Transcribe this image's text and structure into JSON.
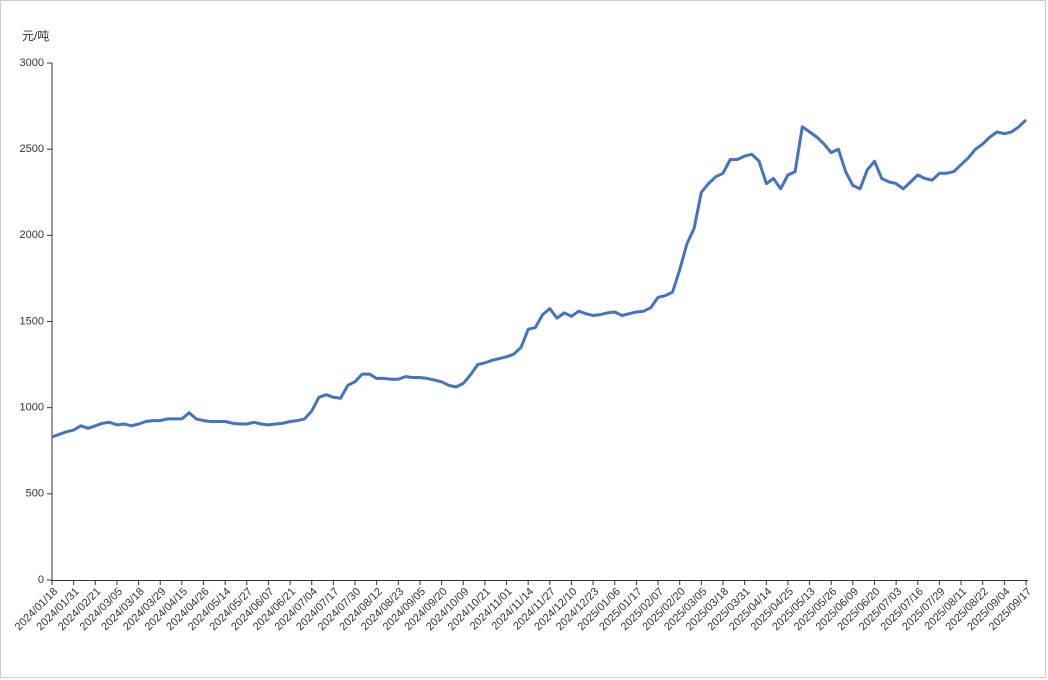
{
  "chart_data": {
    "type": "line",
    "y_axis_label": "元/吨",
    "categories": [
      "2024/01/18",
      null,
      null,
      "2024/01/31",
      null,
      null,
      "2024/02/21",
      null,
      null,
      "2024/03/05",
      null,
      null,
      "2024/03/18",
      null,
      null,
      "2024/03/29",
      null,
      null,
      "2024/04/15",
      null,
      null,
      "2024/04/26",
      null,
      null,
      "2024/05/14",
      null,
      null,
      "2024/05/27",
      null,
      null,
      "2024/06/07",
      null,
      null,
      "2024/06/21",
      null,
      null,
      "2024/07/04",
      null,
      null,
      "2024/07/17",
      null,
      null,
      "2024/07/30",
      null,
      null,
      "2024/08/12",
      null,
      null,
      "2024/08/23",
      null,
      null,
      "2024/09/05",
      null,
      null,
      "2024/09/20",
      null,
      null,
      "2024/10/09",
      null,
      null,
      "2024/10/21",
      null,
      null,
      "2024/11/01",
      null,
      null,
      "2024/11/14",
      null,
      null,
      "2024/11/27",
      null,
      null,
      "2024/12/10",
      null,
      null,
      "2024/12/23",
      null,
      null,
      "2025/01/06",
      null,
      null,
      "2025/01/17",
      null,
      null,
      "2025/02/07",
      null,
      null,
      "2025/02/20",
      null,
      null,
      "2025/03/05",
      null,
      null,
      "2025/03/18",
      null,
      null,
      "2025/03/31",
      null,
      null,
      "2025/04/14",
      null,
      null,
      "2025/04/25",
      null,
      null,
      "2025/05/13",
      null,
      null,
      "2025/05/26",
      null,
      null,
      "2025/06/09",
      null,
      null,
      "2025/06/20",
      null,
      null,
      "2025/07/03",
      null,
      null,
      "2025/07/16",
      null,
      null,
      "2025/07/29",
      null,
      null,
      "2025/08/11",
      null,
      null,
      "2025/08/22",
      null,
      null,
      "2025/09/04",
      null,
      null,
      "2025/09/17"
    ],
    "series": [
      {
        "color": "#4472c4",
        "values": [
          830,
          845,
          860,
          870,
          895,
          880,
          895,
          910,
          915,
          900,
          905,
          895,
          905,
          920,
          925,
          925,
          935,
          935,
          935,
          970,
          935,
          925,
          920,
          920,
          920,
          910,
          905,
          905,
          915,
          905,
          900,
          905,
          910,
          920,
          925,
          935,
          980,
          1060,
          1075,
          1060,
          1055,
          1130,
          1150,
          1195,
          1195,
          1170,
          1170,
          1165,
          1165,
          1180,
          1175,
          1175,
          1170,
          1160,
          1150,
          1130,
          1120,
          1140,
          1190,
          1250,
          1260,
          1275,
          1285,
          1295,
          1310,
          1350,
          1455,
          1465,
          1540,
          1575,
          1520,
          1550,
          1530,
          1560,
          1545,
          1535,
          1540,
          1550,
          1555,
          1535,
          1545,
          1555,
          1560,
          1580,
          1640,
          1650,
          1670,
          1800,
          1950,
          2040,
          2250,
          2300,
          2340,
          2360,
          2440,
          2440,
          2460,
          2470,
          2430,
          2300,
          2330,
          2270,
          2350,
          2370,
          2630,
          2600,
          2570,
          2530,
          2480,
          2500,
          2370,
          2290,
          2270,
          2380,
          2430,
          2330,
          2310,
          2300,
          2270,
          2310,
          2350,
          2330,
          2320,
          2360,
          2360,
          2370,
          2410,
          2450,
          2500,
          2530,
          2570,
          2600,
          2590,
          2600,
          2630,
          2670
        ]
      }
    ],
    "ylim": [
      0,
      3000
    ],
    "yticks": [
      0,
      500,
      1000,
      1500,
      2000,
      2500,
      3000
    ],
    "grid": false
  }
}
